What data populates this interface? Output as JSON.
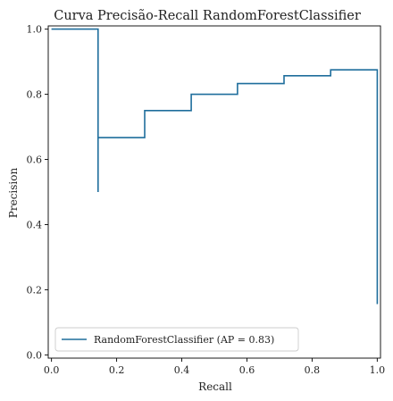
{
  "chart_data": {
    "type": "line",
    "title": "Curva Precisão-Recall RandomForestClassifier",
    "xlabel": "Recall",
    "ylabel": "Precision",
    "xlim": [
      -0.01,
      1.01
    ],
    "ylim": [
      -0.01,
      1.01
    ],
    "x_ticks": [
      0.0,
      0.2,
      0.4,
      0.6,
      0.8,
      1.0
    ],
    "x_tick_labels": [
      "0.0",
      "0.2",
      "0.4",
      "0.6",
      "0.8",
      "1.0"
    ],
    "y_ticks": [
      0.0,
      0.2,
      0.4,
      0.6,
      0.8,
      1.0
    ],
    "y_tick_labels": [
      "0.0",
      "0.2",
      "0.4",
      "0.6",
      "0.8",
      "1.0"
    ],
    "grid": false,
    "legend_position": "lower-left",
    "line_style": "step",
    "series": [
      {
        "name": "RandomForestClassifier (AP = 0.83)",
        "color": "#1f6e9c",
        "recall": [
          0.0,
          0.0,
          0.143,
          0.143,
          0.143,
          0.286,
          0.286,
          0.429,
          0.429,
          0.571,
          0.571,
          0.714,
          0.714,
          0.857,
          0.857,
          1.0,
          1.0
        ],
        "precision": [
          1.0,
          1.0,
          1.0,
          0.5,
          0.667,
          0.667,
          0.75,
          0.75,
          0.8,
          0.8,
          0.833,
          0.833,
          0.857,
          0.857,
          0.875,
          0.875,
          0.156
        ]
      }
    ]
  }
}
